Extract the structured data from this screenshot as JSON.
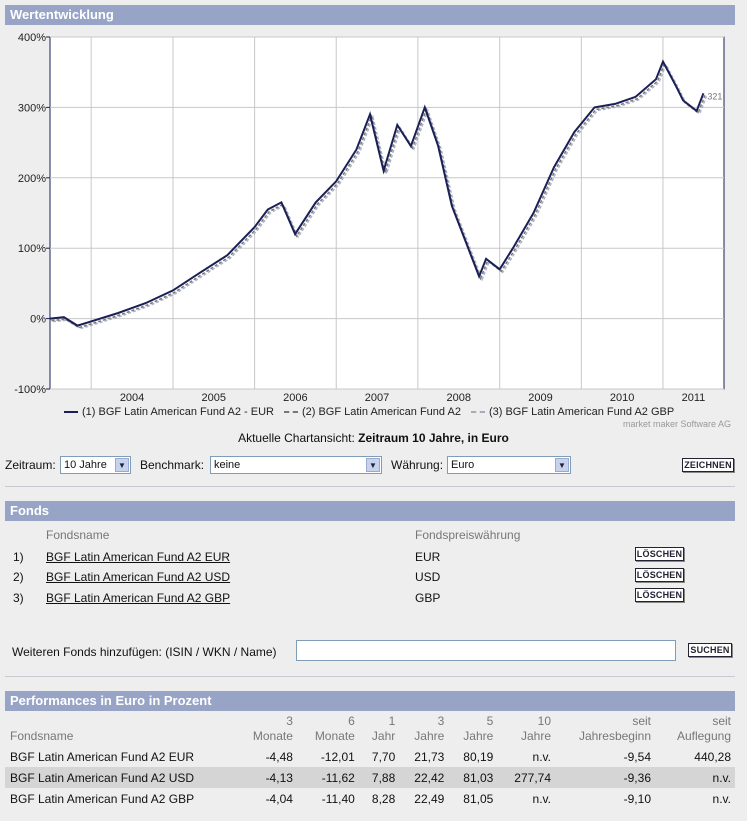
{
  "wertentwicklung": {
    "title": "Wertentwicklung"
  },
  "chart_data": {
    "type": "line",
    "y_unit": "%",
    "ylim": [
      -100,
      400
    ],
    "yticks": [
      "400%",
      "300%",
      "200%",
      "100%",
      "0%",
      "-100%"
    ],
    "xticks": [
      "2004",
      "2005",
      "2006",
      "2007",
      "2008",
      "2009",
      "2010",
      "2011"
    ],
    "grid": true,
    "end_labels": "321",
    "series": [
      {
        "name": "BGF Latin American Fund A2 - EUR",
        "color": "#1a1f55",
        "x": [
          "2003-07",
          "2003-09",
          "2003-11",
          "2004-01",
          "2004-05",
          "2004-09",
          "2005-01",
          "2005-05",
          "2005-09",
          "2006-01",
          "2006-03",
          "2006-05",
          "2006-07",
          "2006-10",
          "2007-01",
          "2007-04",
          "2007-06",
          "2007-08",
          "2007-10",
          "2007-12",
          "2008-02",
          "2008-04",
          "2008-06",
          "2008-08",
          "2008-10",
          "2008-11",
          "2009-01",
          "2009-03",
          "2009-06",
          "2009-09",
          "2009-12",
          "2010-03",
          "2010-06",
          "2010-09",
          "2010-12",
          "2011-01",
          "2011-03",
          "2011-04",
          "2011-06",
          "2011-07"
        ],
        "values": [
          0,
          2,
          -10,
          -4,
          8,
          22,
          40,
          65,
          90,
          130,
          155,
          165,
          120,
          165,
          195,
          240,
          290,
          210,
          275,
          245,
          300,
          245,
          160,
          110,
          60,
          85,
          70,
          100,
          150,
          215,
          265,
          300,
          305,
          315,
          340,
          365,
          330,
          310,
          295,
          320
        ]
      },
      {
        "name": "BGF Latin American Fund A2",
        "color": "#777777",
        "style": "dashed"
      },
      {
        "name": "BGF Latin American Fund A2 GBP",
        "color": "#aab0c8",
        "style": "dashed"
      }
    ]
  },
  "legend": [
    {
      "text": "(1) BGF Latin American Fund A2 - EUR"
    },
    {
      "text": "(2) BGF Latin American Fund A2"
    },
    {
      "text": "(3) BGF Latin American Fund A2 GBP"
    }
  ],
  "watermark": "market maker Software AG",
  "chart_view": {
    "prefix": "Aktuelle Chartansicht:",
    "value": "Zeitraum 10 Jahre, in Euro"
  },
  "controls": {
    "zeitraum_label": "Zeitraum:",
    "zeitraum_value": "10 Jahre",
    "benchmark_label": "Benchmark:",
    "benchmark_value": "keine",
    "waehrung_label": "Währung:",
    "waehrung_value": "Euro",
    "zeichnen": "ZEICHNEN"
  },
  "fonds": {
    "title": "Fonds",
    "col_name": "Fondsname",
    "col_currency": "Fondspreiswährung",
    "delete_label": "LÖSCHEN",
    "rows": [
      {
        "num": "1)",
        "name": "BGF Latin American Fund A2 EUR",
        "currency": "EUR"
      },
      {
        "num": "2)",
        "name": "BGF Latin American Fund A2 USD",
        "currency": "USD"
      },
      {
        "num": "3)",
        "name": "BGF Latin American Fund A2 GBP",
        "currency": "GBP"
      }
    ],
    "add_label": "Weiteren Fonds hinzufügen: (ISIN / WKN / Name)",
    "add_value": "",
    "search_label": "SUCHEN"
  },
  "performance": {
    "title": "Performances in Euro in Prozent",
    "headers": [
      {
        "l1": "",
        "l2": "Fondsname"
      },
      {
        "l1": "3",
        "l2": "Monate"
      },
      {
        "l1": "6",
        "l2": "Monate"
      },
      {
        "l1": "1",
        "l2": "Jahr"
      },
      {
        "l1": "3",
        "l2": "Jahre"
      },
      {
        "l1": "5",
        "l2": "Jahre"
      },
      {
        "l1": "10",
        "l2": "Jahre"
      },
      {
        "l1": "seit",
        "l2": "Jahresbeginn"
      },
      {
        "l1": "seit",
        "l2": "Auflegung"
      }
    ],
    "rows": [
      [
        "BGF Latin American Fund A2 EUR",
        "-4,48",
        "-12,01",
        "7,70",
        "21,73",
        "80,19",
        "n.v.",
        "-9,54",
        "440,28"
      ],
      [
        "BGF Latin American Fund A2 USD",
        "-4,13",
        "-11,62",
        "7,88",
        "22,42",
        "81,03",
        "277,74",
        "-9,36",
        "n.v."
      ],
      [
        "BGF Latin American Fund A2 GBP",
        "-4,04",
        "-11,40",
        "8,28",
        "22,49",
        "81,05",
        "n.v.",
        "-9,10",
        "n.v."
      ]
    ]
  }
}
